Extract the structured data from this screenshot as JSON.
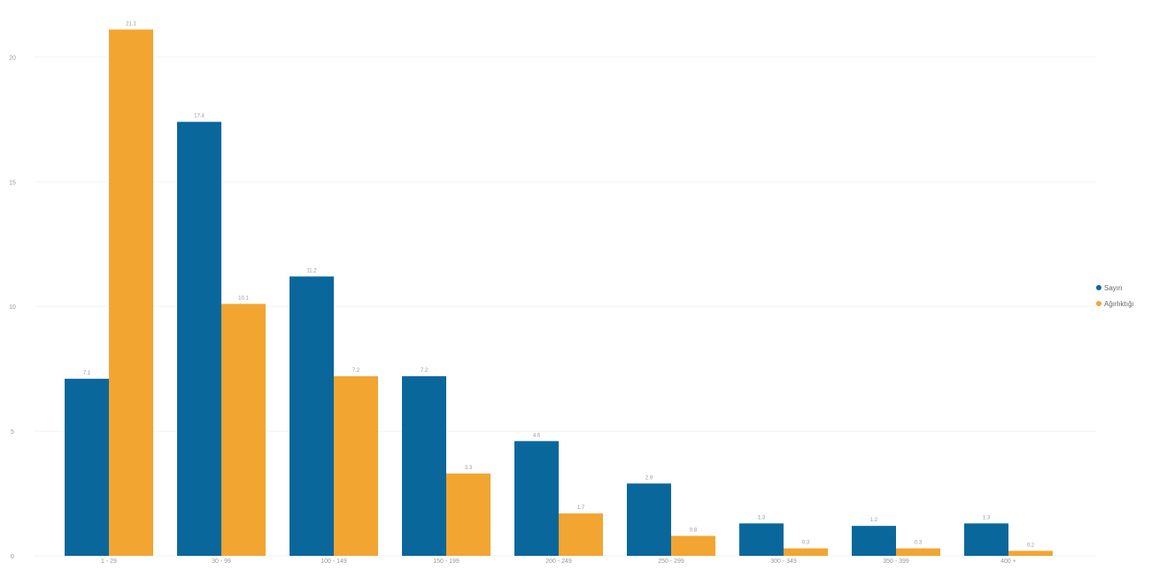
{
  "chart_data": {
    "type": "bar",
    "categories": [
      "1 - 29",
      "30 - 99",
      "100 - 149",
      "150 - 199",
      "200 - 249",
      "250 - 299",
      "300 - 349",
      "350 - 399",
      "400 +"
    ],
    "series": [
      {
        "name": "Sayın",
        "color": "#0a679c",
        "values": [
          7.1,
          17.4,
          11.2,
          7.2,
          4.6,
          2.9,
          1.3,
          1.2,
          1.3
        ]
      },
      {
        "name": "Ağırlıktığı",
        "color": "#f2a531",
        "values": [
          21.1,
          10.1,
          7.2,
          3.3,
          1.7,
          0.8,
          0.3,
          0.3,
          0.2
        ]
      }
    ],
    "ylim": [
      0,
      22
    ],
    "yticks": [
      "0",
      "5",
      "10",
      "15",
      "20"
    ],
    "grid": true,
    "legend": "right"
  }
}
